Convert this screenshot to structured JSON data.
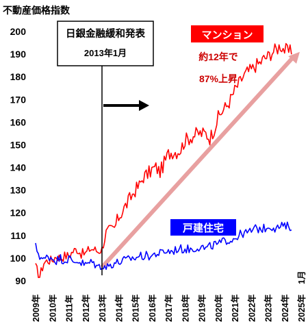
{
  "chart_data": {
    "type": "line",
    "title": "不動産価格指数",
    "ylim": [
      90,
      200
    ],
    "yticks": [
      90,
      100,
      110,
      120,
      130,
      140,
      150,
      160,
      170,
      180,
      190,
      200
    ],
    "x_start": "2009-01",
    "x_end": "2025-01",
    "xtick_labels": [
      "2009年",
      "2010年",
      "2011年",
      "2012年",
      "2013年",
      "2014年",
      "2015年",
      "2016年",
      "2017年",
      "2018年",
      "2019年",
      "2020年",
      "2021年",
      "2022年",
      "2023年",
      "2024年",
      "2025年"
    ],
    "last_tick_suffix": "1月",
    "grid": false,
    "series": [
      {
        "name": "マンション",
        "color": "#ff0000",
        "quarterly": [
          96,
          92,
          98,
          99,
          99,
          101,
          100,
          101,
          101,
          103,
          104,
          102,
          102,
          104,
          104,
          103,
          104,
          111,
          112,
          113,
          118,
          121,
          124,
          127,
          130,
          132,
          136,
          137,
          139,
          140,
          138,
          142,
          146,
          147,
          147,
          148,
          152,
          153,
          154,
          155,
          155,
          155,
          153,
          157,
          162,
          165,
          167,
          170,
          174,
          177,
          180,
          182,
          183,
          185,
          186,
          188,
          189,
          191,
          192,
          194,
          192,
          191
        ]
      },
      {
        "name": "戸建住宅",
        "color": "#0000ff",
        "quarterly": [
          105,
          101,
          99,
          101,
          100,
          99,
          100,
          99,
          100,
          98,
          99,
          98,
          97,
          98,
          98,
          96,
          97,
          96,
          97,
          98,
          98,
          99,
          99,
          100,
          100,
          101,
          101,
          101,
          101,
          102,
          102,
          103,
          103,
          103,
          104,
          104,
          104,
          104,
          104,
          105,
          105,
          104,
          105,
          106,
          106,
          107,
          108,
          108,
          109,
          110,
          111,
          111,
          112,
          113,
          113,
          113,
          114,
          114,
          113,
          114,
          114,
          114
        ]
      }
    ],
    "trend_line": {
      "from": {
        "x": "2013-01",
        "y": 96
      },
      "to": {
        "x": "2024-12",
        "y": 191
      },
      "color": "#e8a0a0"
    },
    "event": {
      "x": "2013-01",
      "line1": "日銀金融緩和発表",
      "line2": "2013年1月"
    },
    "labels": {
      "condo": "マンション",
      "detached": "戸建住宅",
      "note_line1": "約12年で",
      "note_line2": "87%上昇"
    }
  }
}
